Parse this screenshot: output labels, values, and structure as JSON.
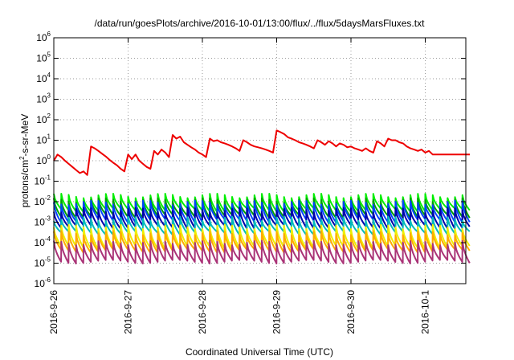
{
  "chart_data": {
    "type": "line",
    "title": "/data/run/goesPlots/archive/2016-10-01/13:00/flux/../flux/5daysMarsFluxes.txt",
    "xlabel": "Coordinated Universal Time (UTC)",
    "ylabel_parts": [
      "protons/cm",
      "2",
      "-s-sr-MeV"
    ],
    "y_scale": "log",
    "ylim": [
      1e-06,
      1000000.0
    ],
    "y_ticks": [
      {
        "base": "10",
        "exp": "-6",
        "value": -6
      },
      {
        "base": "10",
        "exp": "-5",
        "value": -5
      },
      {
        "base": "10",
        "exp": "-4",
        "value": -4
      },
      {
        "base": "10",
        "exp": "-3",
        "value": -3
      },
      {
        "base": "10",
        "exp": "-2",
        "value": -2
      },
      {
        "base": "10",
        "exp": "-1",
        "value": -1
      },
      {
        "base": "10",
        "exp": "0",
        "value": 0
      },
      {
        "base": "10",
        "exp": "1",
        "value": 1
      },
      {
        "base": "10",
        "exp": "2",
        "value": 2
      },
      {
        "base": "10",
        "exp": "3",
        "value": 3
      },
      {
        "base": "10",
        "exp": "4",
        "value": 4
      },
      {
        "base": "10",
        "exp": "5",
        "value": 5
      },
      {
        "base": "10",
        "exp": "6",
        "value": 6
      }
    ],
    "x_ticks": [
      "2016-9-26",
      "2016-9-27",
      "2016-9-28",
      "2016-9-29",
      "2016-9-30",
      "2016-10-1"
    ],
    "xlim_days": [
      0,
      5.6
    ],
    "grid": true,
    "legend": "none",
    "series": [
      {
        "color": "#ee0000",
        "x": [
          0.0,
          0.05,
          0.1,
          0.15,
          0.2,
          0.25,
          0.3,
          0.35,
          0.4,
          0.45,
          0.5,
          0.55,
          0.6,
          0.65,
          0.7,
          0.75,
          0.8,
          0.85,
          0.9,
          0.95,
          1.0,
          1.05,
          1.1,
          1.15,
          1.2,
          1.25,
          1.3,
          1.35,
          1.4,
          1.45,
          1.5,
          1.55,
          1.6,
          1.65,
          1.7,
          1.75,
          1.8,
          1.85,
          1.9,
          1.95,
          2.0,
          2.05,
          2.1,
          2.15,
          2.2,
          2.25,
          2.3,
          2.35,
          2.4,
          2.45,
          2.5,
          2.55,
          2.6,
          2.65,
          2.7,
          2.75,
          2.8,
          2.85,
          2.9,
          2.95,
          3.0,
          3.05,
          3.1,
          3.15,
          3.2,
          3.25,
          3.3,
          3.35,
          3.4,
          3.45,
          3.5,
          3.55,
          3.6,
          3.65,
          3.7,
          3.75,
          3.8,
          3.85,
          3.9,
          3.95,
          4.0,
          4.05,
          4.1,
          4.15,
          4.2,
          4.25,
          4.3,
          4.35,
          4.4,
          4.45,
          4.5,
          4.55,
          4.6,
          4.65,
          4.7,
          4.75,
          4.8,
          4.85,
          4.9,
          4.95,
          5.0,
          5.05,
          5.1,
          5.15,
          5.2,
          5.25,
          5.3,
          5.35,
          5.4,
          5.45,
          5.5,
          5.55,
          5.6
        ],
        "y": [
          1.0,
          2.0,
          1.5,
          1.0,
          0.7,
          0.5,
          0.35,
          0.25,
          0.3,
          0.2,
          5.0,
          4.0,
          3.0,
          2.2,
          1.6,
          1.1,
          0.8,
          0.6,
          0.4,
          0.3,
          2.0,
          1.2,
          2.0,
          1.0,
          0.7,
          0.5,
          0.4,
          3.0,
          2.0,
          3.5,
          2.5,
          1.5,
          18.0,
          12.0,
          15.0,
          8.0,
          6.0,
          4.5,
          3.5,
          2.5,
          2.0,
          1.5,
          12.0,
          9.0,
          10.0,
          8.0,
          7.0,
          6.0,
          5.0,
          4.0,
          3.0,
          10.0,
          8.0,
          6.0,
          5.0,
          4.5,
          4.0,
          3.5,
          3.0,
          2.5,
          30.0,
          25.0,
          20.0,
          14.0,
          12.0,
          10.0,
          8.0,
          7.0,
          6.0,
          5.0,
          4.0,
          10.0,
          8.0,
          6.0,
          9.0,
          7.0,
          5.0,
          7.0,
          6.0,
          4.5,
          5.0,
          4.0,
          3.5,
          3.0,
          4.0,
          3.0,
          2.5,
          9.0,
          7.0,
          5.0,
          12.0,
          10.0,
          10.0,
          8.0,
          7.0,
          5.0,
          4.0,
          3.5,
          3.0,
          3.5,
          2.5,
          3.0,
          2.0,
          2.0,
          2.0,
          2.0,
          2.0,
          2.0,
          2.0,
          2.0,
          2.0,
          2.0,
          2.0
        ]
      },
      {
        "color": "#00ee00",
        "peak": 0.02,
        "trough": 0.004
      },
      {
        "color": "#00a000",
        "peak": 0.012,
        "trough": 0.002
      },
      {
        "color": "#0044ff",
        "peak": 0.009,
        "trough": 0.0012
      },
      {
        "color": "#0000aa",
        "peak": 0.004,
        "trough": 0.0006
      },
      {
        "color": "#00bbbb",
        "peak": 0.0015,
        "trough": 0.0003
      },
      {
        "color": "#eeee00",
        "peak": 0.0006,
        "trough": 6e-05
      },
      {
        "color": "#ffaa00",
        "peak": 0.0003,
        "trough": 4e-05
      },
      {
        "color": "#aa3377",
        "peak": 0.0001,
        "trough": 1.2e-05
      }
    ]
  }
}
